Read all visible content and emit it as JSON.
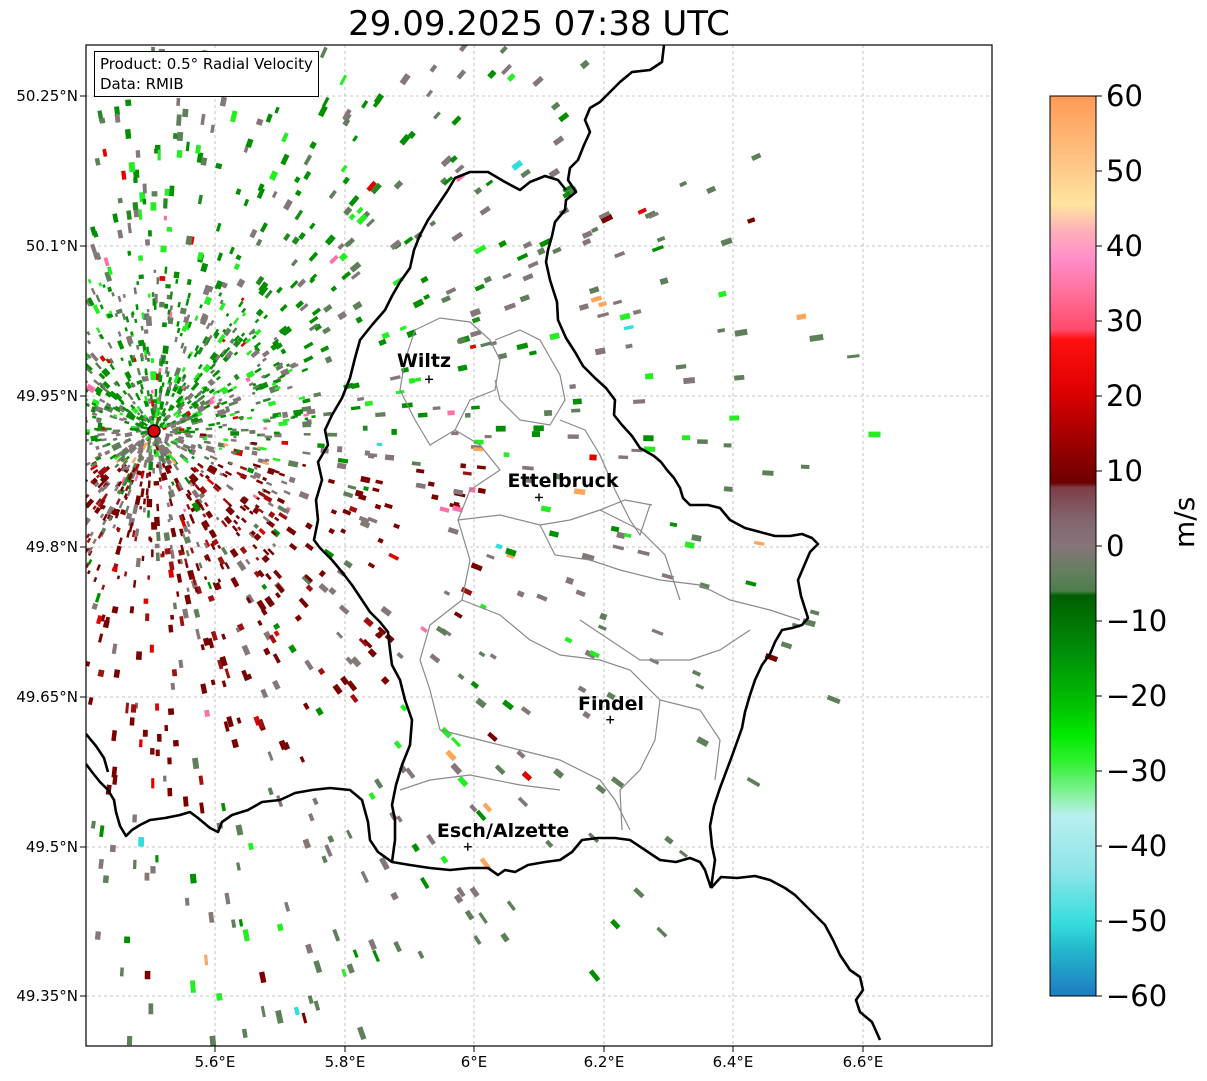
{
  "title": "29.09.2025 07:38 UTC",
  "info": {
    "product": "Product: 0.5° Radial Velocity",
    "data": "Data: RMIB"
  },
  "lat_labels": [
    "50.25°N",
    "50.1°N",
    "49.95°N",
    "49.8°N",
    "49.65°N",
    "49.5°N",
    "49.35°N"
  ],
  "lon_labels": [
    "5.6°E",
    "5.8°E",
    "6°E",
    "6.2°E",
    "6.4°E",
    "6.6°E"
  ],
  "colorbar": {
    "unit": "m/s",
    "ticks": [
      "60",
      "50",
      "40",
      "30",
      "20",
      "10",
      "0",
      "−10",
      "−20",
      "−30",
      "−40",
      "−50",
      "−60"
    ],
    "min": -60,
    "max": 60
  },
  "cities": [
    {
      "name": "Wiltz",
      "lon": 5.93,
      "lat": 49.966
    },
    {
      "name": "Ettelbruck",
      "lon": 6.1,
      "lat": 49.848
    },
    {
      "name": "Findel",
      "lon": 6.21,
      "lat": 49.626
    },
    {
      "name": "Esch/Alzette",
      "lon": 5.99,
      "lat": 49.499
    }
  ],
  "radar_site": {
    "lon": 5.505,
    "lat": 49.914
  },
  "map_extent": {
    "lon": [
      5.4,
      6.8
    ],
    "lat": [
      49.3,
      50.3
    ]
  },
  "colors": {
    "positive_dark": "#7a0000",
    "positive_red": "#e00000",
    "positive_pink": "#ff6fa8",
    "positive_orange": "#ffa65a",
    "neutral": "#857678",
    "neutral_green": "#5f7f5a",
    "negative_green": "#008f00",
    "negative_bright": "#22ee22",
    "negative_cyan": "#30dede",
    "radar_marker": "#e00000"
  }
}
